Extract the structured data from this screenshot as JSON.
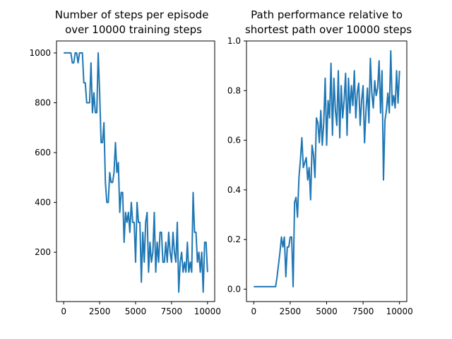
{
  "chart_data": [
    {
      "type": "line",
      "title": "Number of steps per episode\n over 10000 training steps",
      "xlabel": "",
      "ylabel": "",
      "xlim": [
        -500,
        10500
      ],
      "ylim": [
        2,
        1048
      ],
      "xticks": [
        0,
        2500,
        5000,
        7500,
        10000
      ],
      "yticks": [
        200,
        400,
        600,
        800,
        1000
      ],
      "grid": false,
      "series": [
        {
          "color": "#1f77b4",
          "x": [
            0,
            100,
            200,
            300,
            400,
            500,
            600,
            700,
            800,
            900,
            1000,
            1100,
            1200,
            1300,
            1400,
            1500,
            1600,
            1700,
            1800,
            1900,
            2000,
            2100,
            2200,
            2300,
            2400,
            2500,
            2600,
            2700,
            2800,
            2900,
            3000,
            3100,
            3200,
            3300,
            3400,
            3500,
            3600,
            3700,
            3800,
            3900,
            4000,
            4100,
            4200,
            4300,
            4400,
            4500,
            4600,
            4700,
            4800,
            4900,
            5000,
            5100,
            5200,
            5300,
            5400,
            5500,
            5600,
            5700,
            5800,
            5900,
            6000,
            6100,
            6200,
            6300,
            6400,
            6500,
            6600,
            6700,
            6800,
            6900,
            7000,
            7100,
            7200,
            7300,
            7400,
            7500,
            7600,
            7700,
            7800,
            7900,
            8000,
            8100,
            8200,
            8300,
            8400,
            8500,
            8600,
            8700,
            8800,
            8900,
            9000,
            9100,
            9200,
            9300,
            9400,
            9500,
            9600,
            9700,
            9800,
            9900,
            10000
          ],
          "y": [
            1000,
            1000,
            1000,
            1000,
            1000,
            1000,
            960,
            960,
            1000,
            1000,
            960,
            1000,
            1000,
            1000,
            880,
            880,
            800,
            800,
            800,
            960,
            760,
            840,
            760,
            760,
            1000,
            840,
            640,
            640,
            720,
            480,
            400,
            400,
            520,
            480,
            480,
            520,
            640,
            520,
            560,
            360,
            440,
            440,
            240,
            360,
            320,
            360,
            280,
            400,
            320,
            320,
            160,
            400,
            320,
            320,
            80,
            280,
            160,
            320,
            360,
            120,
            240,
            160,
            200,
            360,
            120,
            240,
            160,
            280,
            280,
            160,
            160,
            240,
            160,
            280,
            200,
            160,
            280,
            200,
            160,
            320,
            40,
            160,
            200,
            120,
            160,
            120,
            240,
            120,
            160,
            120,
            440,
            280,
            280,
            160,
            200,
            120,
            200,
            40,
            240,
            240,
            120
          ]
        }
      ]
    },
    {
      "type": "line",
      "title": "Path performance relative to\nshortest path over 10000 steps",
      "xlabel": "",
      "ylabel": "",
      "xlim": [
        -500,
        10500
      ],
      "ylim": [
        -0.05,
        1.0
      ],
      "xticks": [
        0,
        2500,
        5000,
        7500,
        10000
      ],
      "yticks": [
        "0.0",
        "0.2",
        "0.4",
        "0.6",
        "0.8",
        "1.0"
      ],
      "grid": false,
      "series": [
        {
          "color": "#1f77b4",
          "x": [
            0,
            100,
            200,
            300,
            400,
            500,
            600,
            700,
            800,
            900,
            1000,
            1100,
            1200,
            1300,
            1400,
            1500,
            1600,
            1700,
            1800,
            1900,
            2000,
            2100,
            2200,
            2300,
            2400,
            2500,
            2600,
            2700,
            2800,
            2900,
            3000,
            3100,
            3200,
            3300,
            3400,
            3500,
            3600,
            3700,
            3800,
            3900,
            4000,
            4100,
            4200,
            4300,
            4400,
            4500,
            4600,
            4700,
            4800,
            4900,
            5000,
            5100,
            5200,
            5300,
            5400,
            5500,
            5600,
            5700,
            5800,
            5900,
            6000,
            6100,
            6200,
            6300,
            6400,
            6500,
            6600,
            6700,
            6800,
            6900,
            7000,
            7100,
            7200,
            7300,
            7400,
            7500,
            7600,
            7700,
            7800,
            7900,
            8000,
            8100,
            8200,
            8300,
            8400,
            8500,
            8600,
            8700,
            8800,
            8900,
            9000,
            9100,
            9200,
            9300,
            9400,
            9500,
            9600,
            9700,
            9800,
            9900,
            10000
          ],
          "y": [
            0.01,
            0.01,
            0.01,
            0.01,
            0.01,
            0.01,
            0.01,
            0.01,
            0.01,
            0.01,
            0.01,
            0.01,
            0.01,
            0.01,
            0.01,
            0.01,
            0.05,
            0.1,
            0.15,
            0.21,
            0.17,
            0.21,
            0.05,
            0.17,
            0.17,
            0.21,
            0.21,
            0.01,
            0.35,
            0.37,
            0.29,
            0.45,
            0.52,
            0.61,
            0.49,
            0.51,
            0.53,
            0.44,
            0.49,
            0.36,
            0.58,
            0.54,
            0.45,
            0.69,
            0.67,
            0.59,
            0.72,
            0.58,
            0.67,
            0.85,
            0.58,
            0.76,
            0.69,
            0.91,
            0.62,
            0.85,
            0.72,
            0.66,
            0.88,
            0.61,
            0.82,
            0.69,
            0.76,
            0.87,
            0.62,
            0.85,
            0.71,
            0.82,
            0.74,
            0.88,
            0.69,
            0.79,
            0.83,
            0.66,
            0.76,
            0.82,
            0.59,
            0.72,
            0.81,
            0.67,
            0.93,
            0.79,
            0.73,
            0.84,
            0.78,
            0.81,
            0.92,
            0.71,
            0.88,
            0.44,
            0.68,
            0.72,
            0.79,
            0.71,
            0.96,
            0.74,
            0.78,
            0.73,
            0.88,
            0.75,
            0.88
          ]
        }
      ]
    }
  ]
}
